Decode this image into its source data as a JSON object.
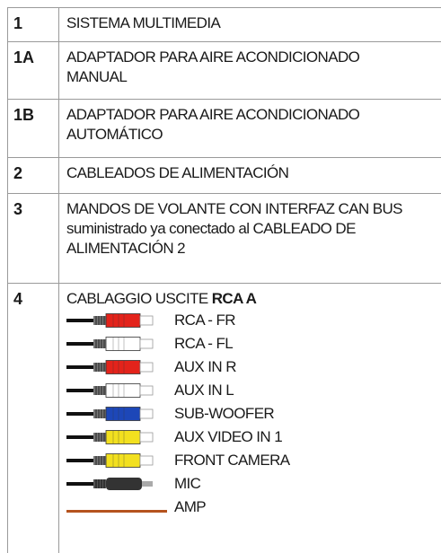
{
  "table": {
    "rows": [
      {
        "number": "1",
        "lines": [
          "SISTEMA MULTIMEDIA"
        ]
      },
      {
        "number": "1A",
        "lines": [
          "ADAPTADOR PARA AIRE ACONDICIONADO",
          "MANUAL"
        ]
      },
      {
        "number": "1B",
        "lines": [
          "ADAPTADOR PARA AIRE ACONDICIONADO",
          "AUTOMÁTICO"
        ]
      },
      {
        "number": "2",
        "lines": [
          "CABLEADOS DE ALIMENTACIÓN"
        ]
      },
      {
        "number": "3",
        "lines": [
          "MANDOS DE VOLANTE CON INTERFAZ CAN BUS",
          "suministrado ya conectado al CABLEADO DE",
          "ALIMENTACIÓN 2"
        ]
      },
      {
        "number": "4",
        "heading": "CABLAGGIO USCITE",
        "heading_bold": "RCA A",
        "cables": [
          "RCA - FR",
          "RCA - FL",
          "AUX IN R",
          "AUX IN L",
          "SUB-WOOFER",
          "AUX VIDEO IN 1",
          "FRONT CAMERA",
          "MIC",
          "AMP"
        ]
      }
    ]
  }
}
